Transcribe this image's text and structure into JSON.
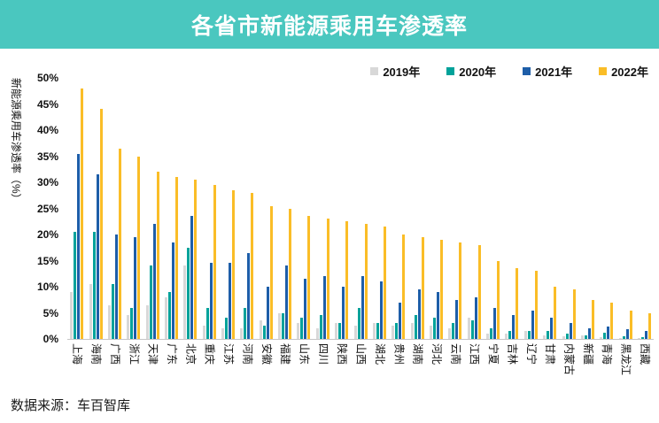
{
  "banner": {
    "title": "各省市新能源乘用车渗透率",
    "bg_color": "#4AC7BF",
    "text_color": "#FFFFFF"
  },
  "source": {
    "text": "数据来源：车百智库"
  },
  "chart_data": {
    "type": "bar",
    "title": "各省市新能源乘用车渗透率",
    "xlabel": "",
    "ylabel": "新能源乘用车渗透率（%）",
    "ylim": [
      0,
      50
    ],
    "ytick_step": 5,
    "ytick_labels": [
      "0%",
      "5%",
      "10%",
      "15%",
      "20%",
      "25%",
      "30%",
      "35%",
      "40%",
      "45%",
      "50%"
    ],
    "grid": false,
    "legend_position": "top-right",
    "categories": [
      "上海",
      "海南",
      "广西",
      "浙江",
      "天津",
      "广东",
      "北京",
      "重庆",
      "江苏",
      "河南",
      "安徽",
      "福建",
      "山东",
      "四川",
      "陕西",
      "山西",
      "湖北",
      "贵州",
      "湖南",
      "河北",
      "云南",
      "江西",
      "宁夏",
      "吉林",
      "辽宁",
      "甘肃",
      "内蒙古",
      "新疆",
      "青海",
      "黑龙江",
      "西藏"
    ],
    "series": [
      {
        "name": "2019年",
        "color": "#D8D8D8",
        "values": [
          9,
          10.5,
          6.5,
          4.5,
          6.5,
          8,
          14,
          2.5,
          2,
          2,
          3.5,
          5,
          3,
          2,
          3,
          2.5,
          3,
          2.5,
          3,
          2.5,
          2,
          4,
          1,
          1,
          1.5,
          0.7,
          0.5,
          0.6,
          0.3,
          0.2,
          0.2
        ]
      },
      {
        "name": "2020年",
        "color": "#00A29A",
        "values": [
          20.5,
          20.5,
          10.5,
          6,
          14,
          9,
          17.5,
          6,
          4,
          6,
          2.5,
          5,
          4,
          4.5,
          3,
          6,
          3,
          3,
          4.5,
          4,
          3,
          3.5,
          2,
          1.5,
          1.5,
          1.5,
          1,
          0.7,
          1.2,
          0.5,
          0.3
        ]
      },
      {
        "name": "2021年",
        "color": "#1E5EA8",
        "values": [
          35.5,
          31.5,
          20,
          19.5,
          22,
          18.5,
          23.5,
          14.5,
          14.5,
          16.5,
          10,
          14,
          11.5,
          12,
          10,
          12,
          11,
          7,
          9.5,
          9,
          7.5,
          8,
          6,
          4.5,
          5.5,
          4,
          3,
          2,
          2.3,
          1.8,
          1.5
        ]
      },
      {
        "name": "2022年",
        "color": "#FABD27",
        "values": [
          48,
          44,
          36.5,
          35,
          32,
          31,
          30.5,
          29.5,
          28.5,
          28,
          25.5,
          25,
          23.5,
          23,
          22.5,
          22,
          21.5,
          20,
          19.5,
          19,
          18.5,
          18,
          15,
          13.5,
          13,
          10,
          9.5,
          7.5,
          7,
          5.5,
          5
        ]
      }
    ]
  }
}
